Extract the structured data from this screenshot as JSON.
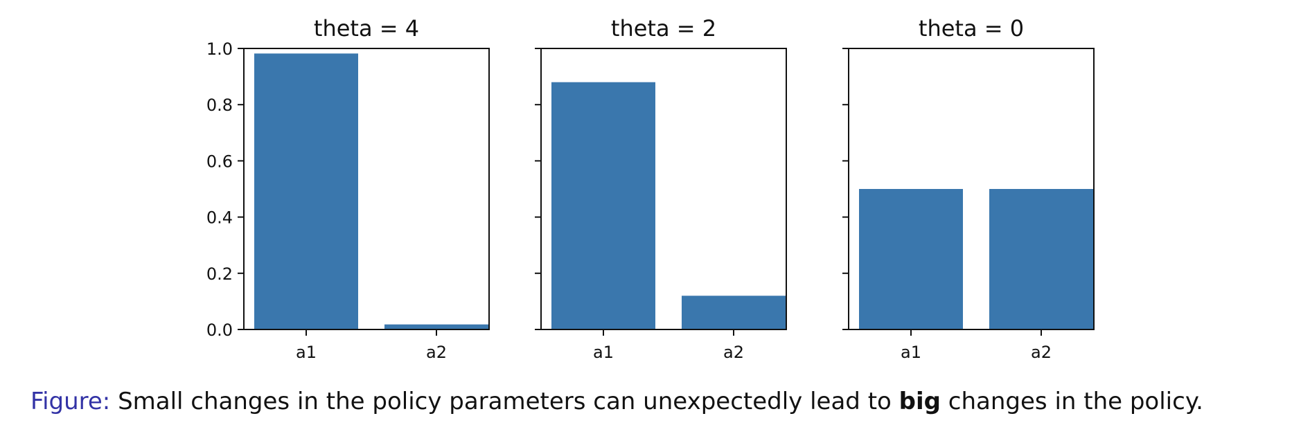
{
  "chart_data": [
    {
      "type": "bar",
      "title": "theta = 4",
      "categories": [
        "a1",
        "a2"
      ],
      "values": [
        0.982,
        0.018
      ],
      "ylim": [
        0,
        1.0
      ],
      "yticks": [
        "0.0",
        "0.2",
        "0.4",
        "0.6",
        "0.8",
        "1.0"
      ],
      "color": "#3a77ad"
    },
    {
      "type": "bar",
      "title": "theta = 2",
      "categories": [
        "a1",
        "a2"
      ],
      "values": [
        0.88,
        0.12
      ],
      "ylim": [
        0,
        1.0
      ],
      "color": "#3a77ad"
    },
    {
      "type": "bar",
      "title": "theta = 0",
      "categories": [
        "a1",
        "a2"
      ],
      "values": [
        0.5,
        0.5
      ],
      "ylim": [
        0,
        1.0
      ],
      "color": "#3a77ad"
    }
  ],
  "caption": {
    "label": "Figure:",
    "text_before": " Small changes in the policy parameters can unexpectedly lead to ",
    "bold": "big",
    "text_after": " changes in the policy."
  }
}
